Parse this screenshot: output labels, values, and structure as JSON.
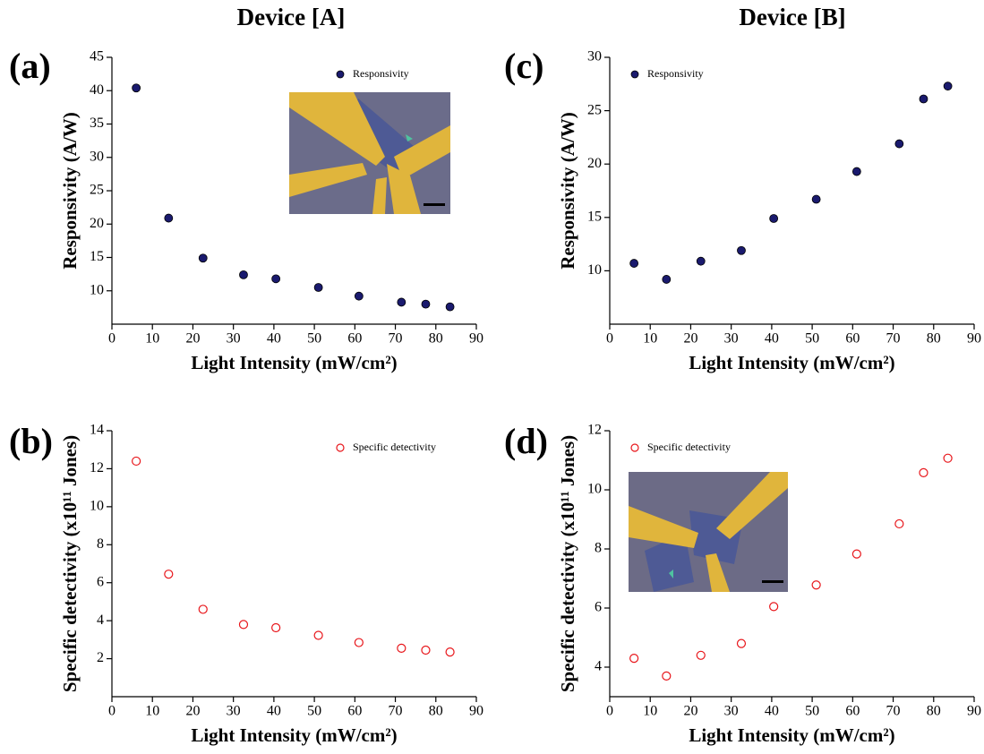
{
  "columns": [
    "Device [A]",
    "Device [B]"
  ],
  "chart_data": [
    {
      "type": "scatter",
      "panel": "(a)",
      "x_label": "Light Intensity (mW/cm²)",
      "y_label": "Responsivity (A/W)",
      "legend": "upper right",
      "marker": "filled",
      "x": [
        6,
        14,
        22.5,
        32.5,
        40.5,
        51,
        61,
        71.5,
        77.5,
        83.5
      ],
      "series": [
        {
          "name": "Responsivity",
          "color": "#1a1a6e",
          "values": [
            40.4,
            20.9,
            14.9,
            12.4,
            11.8,
            10.5,
            9.2,
            8.3,
            8.0,
            7.6
          ]
        }
      ],
      "xlim": [
        0,
        90
      ],
      "xticks": [
        0,
        10,
        20,
        30,
        40,
        50,
        60,
        70,
        80,
        90
      ],
      "ylim": [
        5,
        45
      ],
      "yticks": [
        10,
        15,
        20,
        25,
        30,
        35,
        40,
        45
      ]
    },
    {
      "type": "scatter",
      "panel": "(b)",
      "x_label": "Light Intensity (mW/cm²)",
      "y_label": "Specific detectivity (x10¹¹ Jones)",
      "legend": "upper right",
      "marker": "open",
      "x": [
        6,
        14,
        22.5,
        32.5,
        40.5,
        51,
        61,
        71.5,
        77.5,
        83.5
      ],
      "series": [
        {
          "name": "Specific detectivity",
          "color": "#e8161b",
          "values": [
            12.4,
            6.45,
            4.6,
            3.8,
            3.63,
            3.23,
            2.85,
            2.55,
            2.45,
            2.35
          ]
        }
      ],
      "xlim": [
        0,
        90
      ],
      "xticks": [
        0,
        10,
        20,
        30,
        40,
        50,
        60,
        70,
        80,
        90
      ],
      "ylim": [
        0,
        14
      ],
      "yticks": [
        2,
        4,
        6,
        8,
        10,
        12,
        14
      ]
    },
    {
      "type": "scatter",
      "panel": "(c)",
      "x_label": "Light Intensity (mW/cm²)",
      "y_label": "Responsivity (A/W)",
      "legend": "upper left",
      "marker": "filled",
      "x": [
        6,
        14,
        22.5,
        32.5,
        40.5,
        51,
        61,
        71.5,
        77.5,
        83.5
      ],
      "series": [
        {
          "name": "Responsivity",
          "color": "#1a1a6e",
          "values": [
            10.7,
            9.2,
            10.9,
            11.9,
            14.9,
            16.7,
            19.3,
            21.9,
            26.1,
            27.3
          ]
        }
      ],
      "xlim": [
        0,
        90
      ],
      "xticks": [
        0,
        10,
        20,
        30,
        40,
        50,
        60,
        70,
        80,
        90
      ],
      "ylim": [
        5,
        30
      ],
      "yticks": [
        10,
        15,
        20,
        25,
        30
      ]
    },
    {
      "type": "scatter",
      "panel": "(d)",
      "x_label": "Light Intensity (mW/cm²)",
      "y_label": "Specific detectivity (x10¹¹ Jones)",
      "legend": "upper left",
      "marker": "open",
      "x": [
        6,
        14,
        22.5,
        32.5,
        40.5,
        51,
        61,
        71.5,
        77.5,
        83.5
      ],
      "series": [
        {
          "name": "Specific detectivity",
          "color": "#e8161b",
          "values": [
            4.3,
            3.7,
            4.4,
            4.8,
            6.05,
            6.78,
            7.83,
            8.85,
            10.58,
            11.07
          ]
        }
      ],
      "xlim": [
        0,
        90
      ],
      "xticks": [
        0,
        10,
        20,
        30,
        40,
        50,
        60,
        70,
        80,
        90
      ],
      "ylim": [
        3,
        12
      ],
      "yticks": [
        4,
        6,
        8,
        10,
        12
      ]
    }
  ]
}
